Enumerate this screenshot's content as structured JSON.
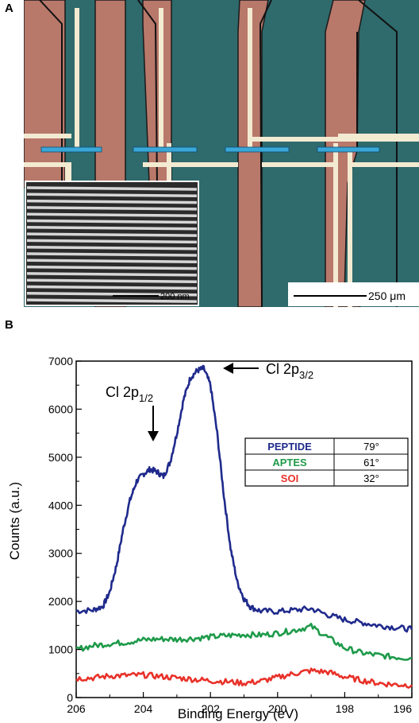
{
  "figure": {
    "panel_a_label": "A",
    "panel_b_label": "B"
  },
  "micrograph": {
    "scale_bar_main": "250 μm",
    "scale_bar_inset": "200 nm",
    "colors": {
      "substrate": "#2f6a6c",
      "electrode": "#b8786a",
      "wire": "#f3ead2",
      "nanowire_marker": "#3aa7d8",
      "inset_bg": "#2b2b2b"
    }
  },
  "annotations": {
    "peak_1": "Cl 2p",
    "peak_1_sub": "1/2",
    "peak_2": "Cl 2p",
    "peak_2_sub": "3/2"
  },
  "legend_table": {
    "rows": [
      {
        "name": "PEPTIDE",
        "angle": "79°",
        "color": "#1f2a8c"
      },
      {
        "name": "APTES",
        "angle": "61°",
        "color": "#1e9a4a"
      },
      {
        "name": "SOI",
        "angle": "32°",
        "color": "#e8322a"
      }
    ]
  },
  "chart_data": {
    "type": "line",
    "xlabel": "Binding Energy (eV)",
    "ylabel": "Counts (a.u.)",
    "xlim": [
      206,
      196
    ],
    "ylim": [
      0,
      7000
    ],
    "x_reversed": true,
    "xticks": [
      206,
      204,
      202,
      200,
      198,
      196
    ],
    "yticks": [
      0,
      1000,
      2000,
      3000,
      4000,
      5000,
      6000,
      7000
    ],
    "grid": false,
    "legend": "right (table)",
    "series": [
      {
        "name": "PEPTIDE",
        "color": "#1f2a8c",
        "x": [
          206,
          205.5,
          205.2,
          205,
          204.8,
          204.6,
          204.4,
          204.2,
          204,
          203.8,
          203.6,
          203.4,
          203.2,
          203,
          202.8,
          202.6,
          202.4,
          202.2,
          202,
          201.8,
          201.6,
          201.4,
          201.2,
          201,
          200.8,
          200.5,
          200,
          199.5,
          199,
          198.5,
          198,
          197.5,
          197,
          196.5,
          196
        ],
        "y": [
          1800,
          1820,
          1900,
          2200,
          2750,
          3500,
          4100,
          4500,
          4650,
          4750,
          4700,
          4600,
          4900,
          5500,
          6200,
          6650,
          6800,
          6850,
          6500,
          5500,
          4200,
          3100,
          2400,
          2050,
          1880,
          1800,
          1790,
          1820,
          1850,
          1720,
          1620,
          1560,
          1500,
          1460,
          1420
        ]
      },
      {
        "name": "APTES",
        "color": "#1e9a4a",
        "x": [
          206,
          205.5,
          205,
          204.5,
          204,
          203.5,
          203,
          202.5,
          202,
          201.5,
          201,
          200.5,
          200,
          199.5,
          199,
          198.5,
          198,
          197.5,
          197,
          196.5,
          196
        ],
        "y": [
          1000,
          1080,
          1120,
          1150,
          1200,
          1220,
          1210,
          1230,
          1260,
          1290,
          1310,
          1300,
          1340,
          1400,
          1480,
          1250,
          1030,
          930,
          880,
          840,
          820
        ]
      },
      {
        "name": "SOI",
        "color": "#e8322a",
        "x": [
          206,
          205.5,
          205,
          204.5,
          204,
          203.5,
          203,
          202.5,
          202,
          201.5,
          201,
          200.5,
          200,
          199.5,
          199,
          198.5,
          198,
          197.5,
          197,
          196.5,
          196
        ],
        "y": [
          400,
          410,
          450,
          460,
          470,
          440,
          410,
          380,
          350,
          330,
          300,
          340,
          420,
          500,
          560,
          530,
          430,
          360,
          300,
          270,
          260
        ]
      }
    ]
  }
}
